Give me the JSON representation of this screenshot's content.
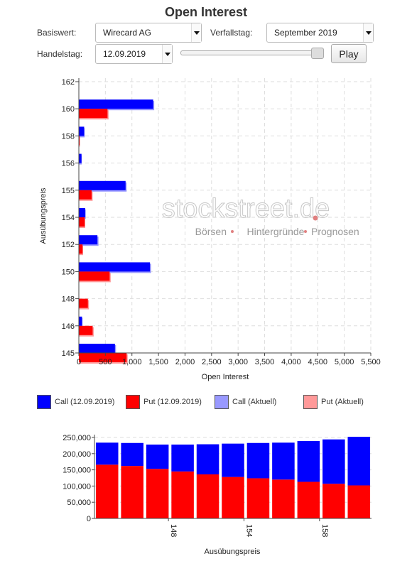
{
  "title": "Open Interest",
  "controls": {
    "basiswert_label": "Basiswert:",
    "basiswert_value": "Wirecard AG",
    "verfallstag_label": "Verfallstag:",
    "verfallstag_value": "September 2019",
    "handelstag_label": "Handelstag:",
    "handelstag_value": "12.09.2019",
    "slider_position": 1.0,
    "play_label": "Play"
  },
  "watermark": {
    "brand": "stockstreet.de",
    "tagline_1": "Börsen",
    "tagline_2": "Hintergründe",
    "tagline_3": "Prognosen"
  },
  "colors": {
    "call": "#0000ff",
    "put": "#ff0000",
    "call_current": "#9999ff",
    "put_current": "#ff9999"
  },
  "legend": [
    {
      "label": "Call (12.09.2019)",
      "color": "#0000ff"
    },
    {
      "label": "Put (12.09.2019)",
      "color": "#ff0000"
    },
    {
      "label": "Call (Aktuell)",
      "color": "#9999ff"
    },
    {
      "label": "Put (Aktuell)",
      "color": "#ff9999"
    }
  ],
  "chart_data": [
    {
      "type": "bar",
      "orientation": "horizontal",
      "ylabel": "Ausübungspreis",
      "xlabel": "Open Interest",
      "categories": [
        162,
        160,
        158,
        156,
        155,
        154,
        152,
        150,
        148,
        146,
        145
      ],
      "xlim": [
        0,
        5500
      ],
      "xticks": [
        "0",
        "500",
        "1,000",
        "1,500",
        "2,000",
        "2,500",
        "3,000",
        "3,500",
        "4,000",
        "4,500",
        "5,000",
        "5,500"
      ],
      "xtick_values": [
        0,
        500,
        1000,
        1500,
        2000,
        2500,
        3000,
        3500,
        4000,
        4500,
        5000,
        5500
      ],
      "grid": true,
      "legend_position": "bottom",
      "series": [
        {
          "name": "Call (12.09.2019)",
          "values": [
            0,
            1400,
            100,
            50,
            880,
            120,
            350,
            1340,
            0,
            60,
            680
          ]
        },
        {
          "name": "Put (12.09.2019)",
          "values": [
            0,
            540,
            15,
            0,
            240,
            110,
            70,
            580,
            170,
            260,
            900
          ]
        },
        {
          "name": "Call (Aktuell)",
          "values": [
            0,
            1420,
            110,
            55,
            900,
            130,
            370,
            1360,
            0,
            70,
            700
          ]
        },
        {
          "name": "Put (Aktuell)",
          "values": [
            0,
            560,
            20,
            0,
            260,
            120,
            80,
            600,
            190,
            280,
            920
          ]
        }
      ]
    },
    {
      "type": "bar",
      "stacked": true,
      "xlabel": "Ausübungspreis",
      "ylim": [
        0,
        250000
      ],
      "yticks": [
        "0",
        "50,000",
        "100,000",
        "150,000",
        "200,000",
        "250,000"
      ],
      "ytick_values": [
        0,
        50000,
        100000,
        150000,
        200000,
        250000
      ],
      "xtick_labels": [
        {
          "index": 3,
          "label": "148"
        },
        {
          "index": 6,
          "label": "154"
        },
        {
          "index": 9,
          "label": "158"
        }
      ],
      "series": [
        {
          "name": "Put",
          "values": [
            166000,
            162000,
            153000,
            145000,
            136000,
            128000,
            124000,
            120000,
            113000,
            107000,
            102000
          ]
        },
        {
          "name": "Call",
          "values": [
            68000,
            71000,
            75000,
            83000,
            93000,
            103000,
            109000,
            114000,
            126000,
            137000,
            150000
          ]
        }
      ]
    }
  ]
}
